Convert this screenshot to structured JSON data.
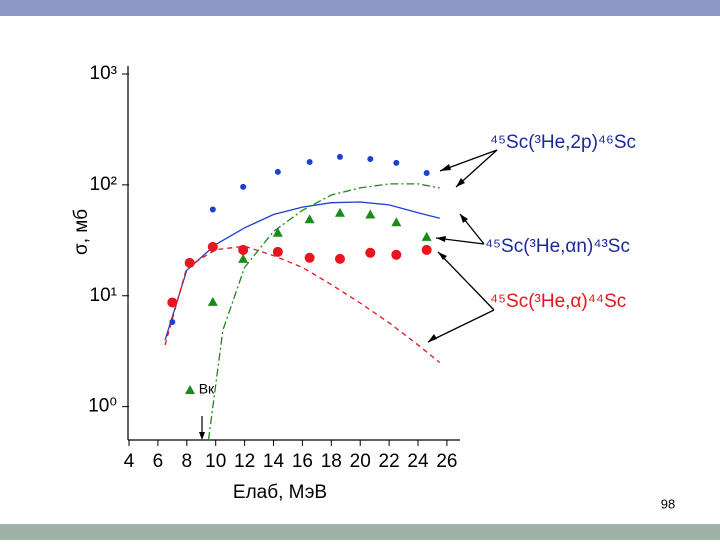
{
  "page_number": "98",
  "chart_data": {
    "type": "scatter",
    "x_label": "Eлаб, МэВ",
    "y_label": "σ, мб",
    "xlim": [
      4,
      26.5
    ],
    "xticks": [
      4,
      6,
      8,
      10,
      12,
      14,
      16,
      18,
      20,
      22,
      24,
      26
    ],
    "ylim": [
      0.5,
      1000
    ],
    "log_y": true,
    "yticks": [
      {
        "value": 1,
        "label": "10⁰"
      },
      {
        "value": 10,
        "label": "10¹"
      },
      {
        "value": 100,
        "label": "10²"
      },
      {
        "value": 1000,
        "label": "10³"
      }
    ],
    "series": [
      {
        "name": "⁴⁵Sc(³He,2p)⁴⁶Sc",
        "color": "#1f3fcf",
        "marker": "dot",
        "x": [
          7.0,
          9.8,
          11.9,
          14.3,
          16.5,
          18.6,
          20.7,
          22.5,
          24.6
        ],
        "values": [
          5.8,
          60,
          96,
          131,
          161,
          179,
          171,
          158,
          128
        ]
      },
      {
        "name": "⁴⁵Sc(³He,αn)⁴³Sc",
        "color": "#1a8a1a",
        "marker": "triangle",
        "x": [
          9.8,
          11.9,
          14.3,
          16.5,
          18.6,
          20.7,
          22.5,
          24.6
        ],
        "values": [
          8.8,
          21.5,
          37,
          49,
          56,
          54,
          46,
          34
        ]
      },
      {
        "name": "⁴⁵Sc(³He,α)⁴⁴Sc",
        "color": "#e8141e",
        "marker": "circle",
        "x": [
          7.0,
          8.2,
          9.8,
          11.9,
          14.3,
          16.5,
          18.6,
          20.7,
          22.5,
          24.6
        ],
        "values": [
          8.7,
          19.8,
          27.6,
          25.9,
          24.9,
          22,
          21.5,
          24.4,
          23.4,
          25.9
        ]
      }
    ],
    "curves": [
      {
        "color": "#1f3fcf",
        "dash": "none",
        "x": [
          6.5,
          8,
          10,
          12,
          14,
          16,
          18,
          20,
          22,
          24,
          25.5
        ],
        "values": [
          4,
          17,
          29,
          41,
          54,
          63,
          69,
          70,
          66,
          56,
          50
        ]
      },
      {
        "color": "#e8141e",
        "dash": "5 4",
        "x": [
          6.5,
          8,
          10,
          12,
          14,
          16,
          18,
          20,
          22,
          24,
          25.5
        ],
        "values": [
          3.6,
          18,
          26,
          28,
          23,
          18,
          12.6,
          8.6,
          5.7,
          3.6,
          2.5
        ]
      },
      {
        "color": "#1a8a1a",
        "dash": "8 3 2 3",
        "x": [
          9.5,
          10.5,
          12,
          14,
          16,
          18,
          20,
          22,
          24,
          25.5
        ],
        "values": [
          0.5,
          4.9,
          18,
          38,
          59,
          81,
          94,
          102,
          102,
          94
        ]
      }
    ],
    "barrier": {
      "label": "Bк",
      "x": 9.1
    }
  }
}
